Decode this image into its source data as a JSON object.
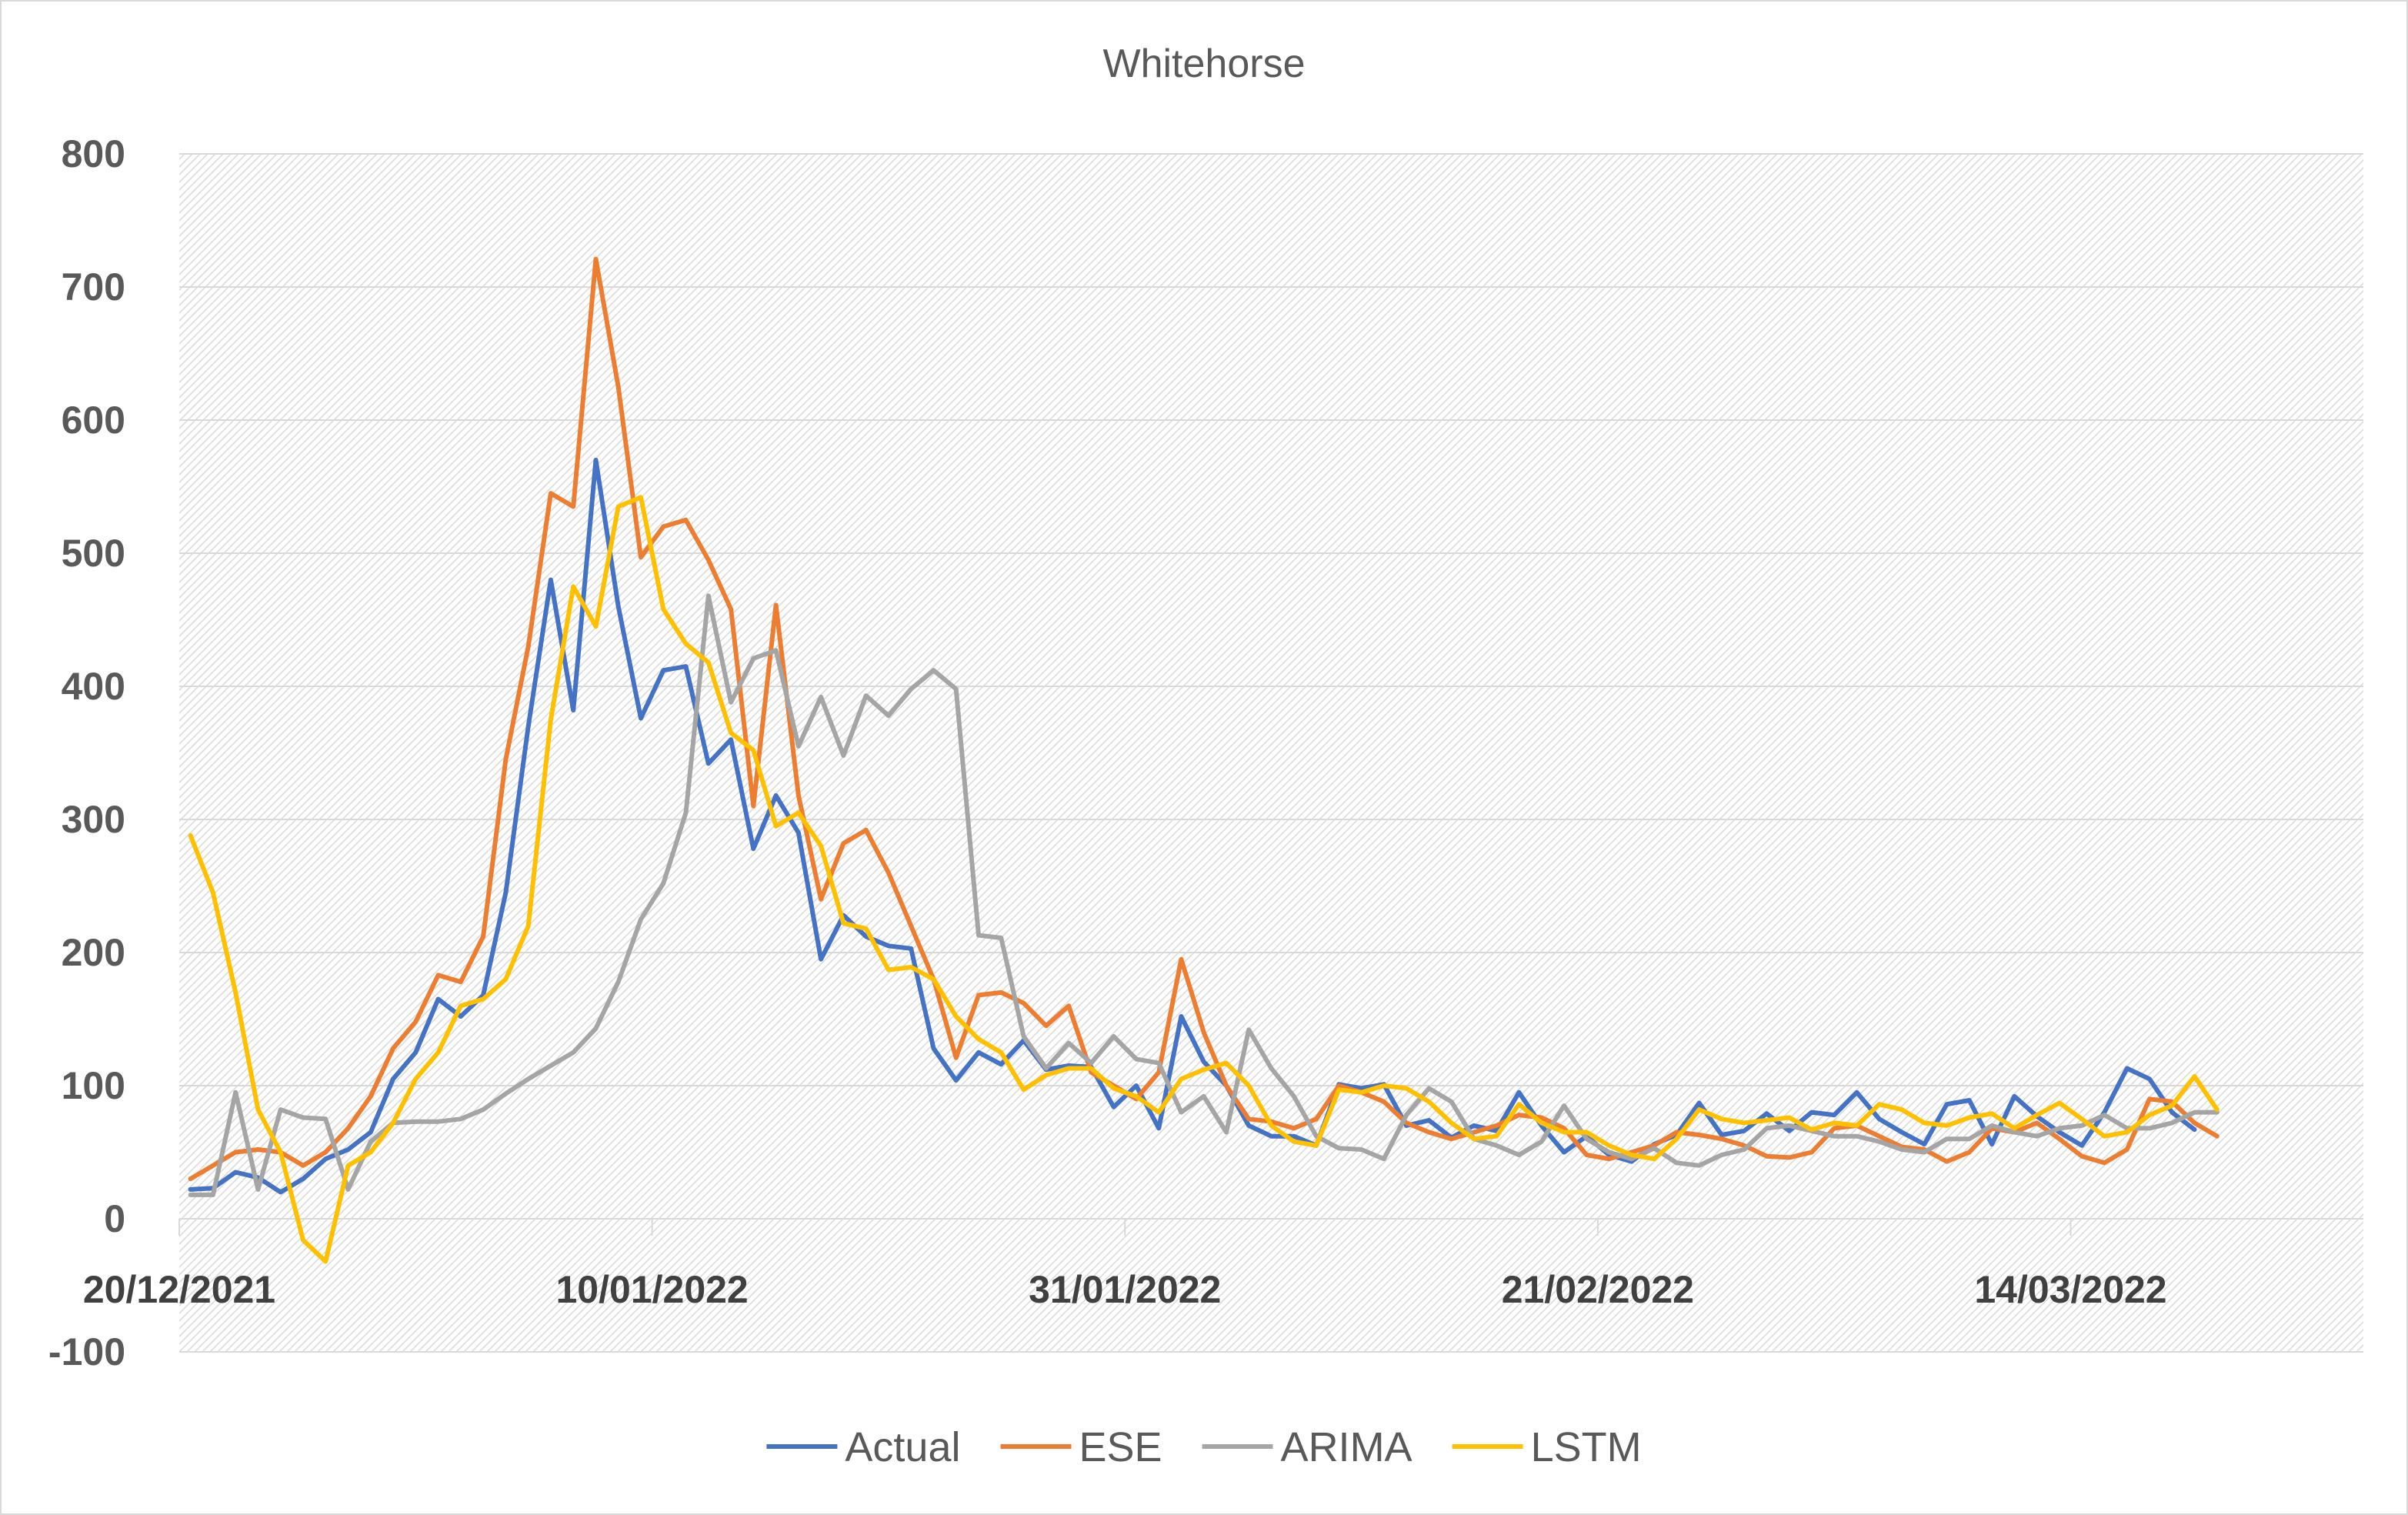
{
  "chart_data": {
    "type": "line",
    "title": "Whitehorse",
    "xlabel": "",
    "ylabel": "",
    "ylim": [
      -100,
      800
    ],
    "yticks": [
      -100,
      0,
      100,
      200,
      300,
      400,
      500,
      600,
      700,
      800
    ],
    "grid": true,
    "legend_position": "bottom",
    "x_start": "20/12/2021",
    "x_end": "26/03/2022",
    "x_ticks": [
      "20/12/2021",
      "10/01/2022",
      "31/01/2022",
      "21/02/2022",
      "14/03/2022"
    ],
    "series": [
      {
        "name": "Actual",
        "color": "#4472c4",
        "values": [
          22,
          23,
          35,
          31,
          20,
          30,
          45,
          52,
          65,
          105,
          125,
          165,
          152,
          168,
          245,
          370,
          480,
          382,
          570,
          460,
          376,
          412,
          415,
          342,
          360,
          278,
          318,
          290,
          195,
          228,
          212,
          205,
          203,
          128,
          104,
          125,
          116,
          134,
          112,
          115,
          114,
          84,
          100,
          68,
          152,
          118,
          100,
          70,
          62,
          62,
          55,
          101,
          98,
          101,
          70,
          74,
          61,
          70,
          66,
          95,
          70,
          50,
          62,
          48,
          43,
          56,
          63,
          87,
          63,
          66,
          79,
          66,
          80,
          78,
          95,
          75,
          65,
          56,
          86,
          89,
          56,
          92,
          77,
          65,
          55,
          80,
          113,
          105,
          80,
          67
        ]
      },
      {
        "name": "ESE",
        "color": "#ed7d31",
        "values": [
          30,
          40,
          50,
          52,
          50,
          40,
          50,
          68,
          92,
          128,
          148,
          183,
          178,
          212,
          345,
          430,
          545,
          535,
          721,
          625,
          497,
          520,
          525,
          495,
          458,
          310,
          461,
          318,
          240,
          282,
          292,
          260,
          220,
          180,
          121,
          168,
          170,
          162,
          145,
          160,
          110,
          100,
          90,
          110,
          195,
          140,
          100,
          75,
          73,
          68,
          75,
          100,
          95,
          88,
          72,
          65,
          60,
          65,
          70,
          78,
          76,
          68,
          48,
          45,
          50,
          55,
          65,
          63,
          60,
          55,
          47,
          46,
          50,
          68,
          70,
          62,
          54,
          52,
          43,
          50,
          68,
          65,
          72,
          60,
          47,
          42,
          52,
          90,
          88,
          72,
          62
        ]
      },
      {
        "name": "ARIMA",
        "color": "#a5a5a5",
        "values": [
          18,
          18,
          95,
          22,
          82,
          76,
          75,
          22,
          58,
          72,
          73,
          73,
          75,
          82,
          94,
          105,
          115,
          125,
          143,
          178,
          225,
          252,
          305,
          468,
          388,
          421,
          427,
          355,
          392,
          348,
          393,
          378,
          398,
          412,
          398,
          213,
          211,
          137,
          113,
          132,
          117,
          137,
          120,
          117,
          80,
          92,
          65,
          142,
          113,
          92,
          62,
          53,
          52,
          45,
          78,
          98,
          88,
          60,
          55,
          48,
          58,
          85,
          60,
          50,
          45,
          53,
          42,
          40,
          48,
          52,
          68,
          70,
          66,
          62,
          62,
          58,
          52,
          50,
          60,
          60,
          70,
          65,
          62,
          68,
          70,
          78,
          68,
          68,
          72,
          80,
          80
        ]
      },
      {
        "name": "LSTM",
        "color": "#ffc000",
        "values": [
          288,
          245,
          170,
          82,
          50,
          -16,
          -32,
          40,
          50,
          72,
          105,
          125,
          160,
          165,
          180,
          220,
          375,
          475,
          445,
          535,
          542,
          458,
          432,
          418,
          365,
          352,
          295,
          305,
          280,
          222,
          218,
          187,
          189,
          180,
          152,
          135,
          125,
          97,
          108,
          113,
          113,
          98,
          92,
          80,
          105,
          112,
          117,
          100,
          70,
          58,
          55,
          97,
          95,
          100,
          98,
          88,
          72,
          60,
          62,
          86,
          72,
          65,
          65,
          55,
          48,
          45,
          60,
          82,
          75,
          72,
          74,
          76,
          67,
          72,
          70,
          86,
          82,
          72,
          70,
          76,
          79,
          68,
          78,
          87,
          75,
          62,
          65,
          78,
          85,
          107,
          82
        ]
      }
    ]
  }
}
